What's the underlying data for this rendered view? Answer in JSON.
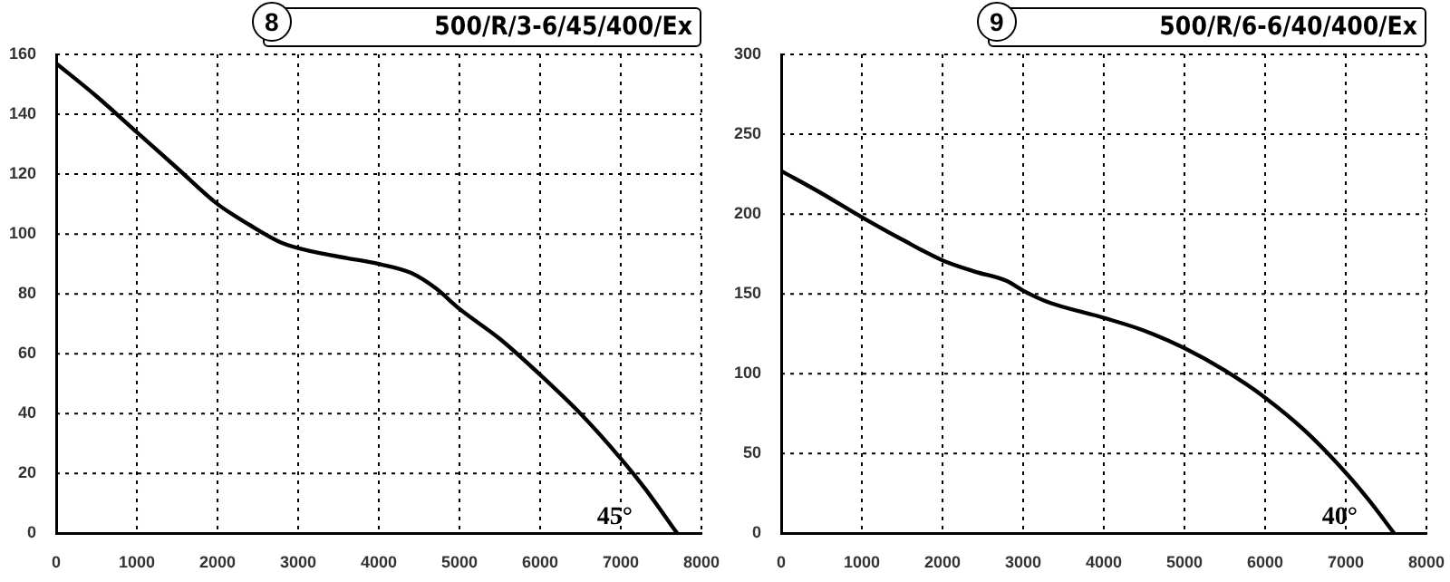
{
  "chart_data": [
    {
      "type": "line",
      "title": "8",
      "subtitle": "500/R/3-6/45/400/Ex",
      "x": [
        0,
        500,
        1000,
        1500,
        2000,
        2400,
        2800,
        3200,
        3600,
        4000,
        4400,
        4700,
        5000,
        5500,
        6000,
        6500,
        7000,
        7300,
        7700
      ],
      "series": [
        {
          "color": "#000000",
          "values": [
            157,
            146,
            134,
            122,
            110,
            103,
            97,
            94,
            92,
            90,
            87,
            82,
            75,
            65,
            53,
            40,
            25,
            15,
            0
          ]
        }
      ],
      "xlim": [
        0,
        8000
      ],
      "xticks": [
        0,
        1000,
        2000,
        3000,
        4000,
        5000,
        6000,
        7000,
        8000
      ],
      "ylim": [
        0,
        160
      ],
      "yticks": [
        0,
        20,
        40,
        60,
        80,
        100,
        120,
        140,
        160
      ],
      "grid": true,
      "legend": false,
      "marker": "none",
      "line_style": "solid",
      "annotations": [
        "45°"
      ]
    },
    {
      "type": "line",
      "title": "9",
      "subtitle": "500/R/6-6/40/400/Ex",
      "x": [
        0,
        500,
        1000,
        1500,
        2000,
        2400,
        2800,
        3000,
        3300,
        4000,
        4500,
        5000,
        5500,
        6000,
        6500,
        7000,
        7300,
        7600
      ],
      "series": [
        {
          "color": "#000000",
          "values": [
            227,
            213,
            198,
            184,
            171,
            164,
            158,
            152,
            145,
            135,
            127,
            116,
            102,
            85,
            64,
            38,
            20,
            0
          ]
        }
      ],
      "xlim": [
        0,
        8000
      ],
      "xticks": [
        0,
        1000,
        2000,
        3000,
        4000,
        5000,
        6000,
        7000,
        8000
      ],
      "ylim": [
        0,
        300
      ],
      "yticks": [
        0,
        50,
        100,
        150,
        200,
        250,
        300
      ],
      "grid": true,
      "legend": false,
      "marker": "none",
      "line_style": "solid",
      "annotations": [
        "40°"
      ]
    }
  ]
}
